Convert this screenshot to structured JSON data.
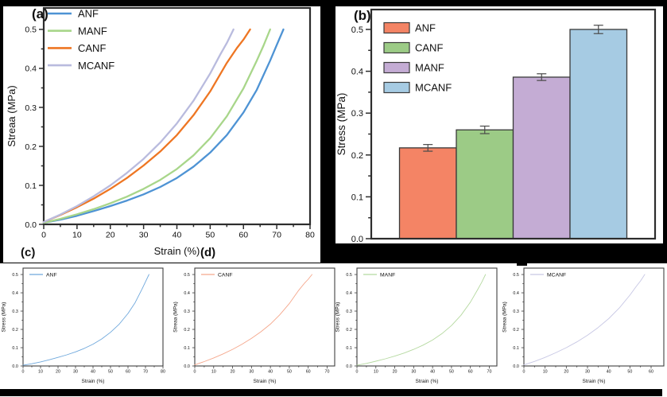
{
  "panels": {
    "a_label": "(a)",
    "b_label": "(b)",
    "c_label": "(c)",
    "d_label": "(d)"
  },
  "chart_data": [
    {
      "id": "panel-a",
      "type": "line",
      "title": "",
      "xlabel": "Strain (%)",
      "ylabel": "Streaa (MPa)",
      "xlim": [
        0,
        80
      ],
      "ylim": [
        0,
        0.5
      ],
      "xticks": [
        0,
        10,
        20,
        30,
        40,
        50,
        60,
        70,
        80
      ],
      "yticks": [
        0.0,
        0.1,
        0.2,
        0.3,
        0.4,
        0.5
      ],
      "grid": false,
      "legend_position": "top-left",
      "series": [
        {
          "name": "ANF",
          "color": "#4E93D4",
          "points": [
            [
              0,
              0.004
            ],
            [
              5,
              0.012
            ],
            [
              10,
              0.022
            ],
            [
              15,
              0.034
            ],
            [
              20,
              0.047
            ],
            [
              25,
              0.061
            ],
            [
              30,
              0.077
            ],
            [
              35,
              0.096
            ],
            [
              40,
              0.119
            ],
            [
              45,
              0.148
            ],
            [
              50,
              0.184
            ],
            [
              55,
              0.229
            ],
            [
              60,
              0.287
            ],
            [
              64,
              0.345
            ],
            [
              68,
              0.42
            ],
            [
              70,
              0.46
            ],
            [
              72,
              0.5
            ]
          ]
        },
        {
          "name": "MANF",
          "color": "#A8D68A",
          "points": [
            [
              0,
              0.004
            ],
            [
              5,
              0.014
            ],
            [
              10,
              0.026
            ],
            [
              15,
              0.039
            ],
            [
              20,
              0.054
            ],
            [
              25,
              0.071
            ],
            [
              30,
              0.091
            ],
            [
              35,
              0.114
            ],
            [
              40,
              0.142
            ],
            [
              45,
              0.177
            ],
            [
              50,
              0.221
            ],
            [
              55,
              0.277
            ],
            [
              60,
              0.349
            ],
            [
              64,
              0.42
            ],
            [
              66,
              0.458
            ],
            [
              68,
              0.5
            ]
          ]
        },
        {
          "name": "CANF",
          "color": "#EE7623",
          "points": [
            [
              0,
              0.006
            ],
            [
              5,
              0.024
            ],
            [
              10,
              0.044
            ],
            [
              15,
              0.066
            ],
            [
              20,
              0.091
            ],
            [
              25,
              0.119
            ],
            [
              30,
              0.151
            ],
            [
              35,
              0.187
            ],
            [
              40,
              0.229
            ],
            [
              45,
              0.28
            ],
            [
              50,
              0.341
            ],
            [
              55,
              0.414
            ],
            [
              58,
              0.452
            ],
            [
              60,
              0.474
            ],
            [
              62,
              0.5
            ]
          ]
        },
        {
          "name": "MCANF",
          "color": "#B9BBDE",
          "points": [
            [
              0,
              0.006
            ],
            [
              5,
              0.025
            ],
            [
              10,
              0.047
            ],
            [
              15,
              0.072
            ],
            [
              20,
              0.1
            ],
            [
              25,
              0.132
            ],
            [
              30,
              0.168
            ],
            [
              35,
              0.21
            ],
            [
              40,
              0.259
            ],
            [
              45,
              0.317
            ],
            [
              50,
              0.387
            ],
            [
              53,
              0.435
            ],
            [
              55,
              0.465
            ],
            [
              57,
              0.5
            ]
          ]
        }
      ]
    },
    {
      "id": "panel-b",
      "type": "bar",
      "title": "",
      "xlabel": "",
      "ylabel": "Stress (MPa)",
      "categories": [
        "ANF",
        "CANF",
        "MANF",
        "MCANF"
      ],
      "values": [
        0.217,
        0.26,
        0.386,
        0.5
      ],
      "errors": [
        0.008,
        0.009,
        0.008,
        0.01
      ],
      "colors": [
        "#F48465",
        "#9CCB86",
        "#C4ACD4",
        "#A6CBE3"
      ],
      "ylim": [
        0,
        0.5
      ],
      "yticks": [
        0.0,
        0.1,
        0.2,
        0.3,
        0.4,
        0.5
      ],
      "grid": false,
      "legend_position": "top-left"
    },
    {
      "id": "panel-c1",
      "type": "line",
      "xlabel": "Strain (%)",
      "ylabel": "Stress (MPa)",
      "xlim": [
        0,
        80
      ],
      "ylim": [
        0,
        0.5
      ],
      "xticks": [
        0,
        10,
        20,
        30,
        40,
        50,
        60,
        70,
        80
      ],
      "yticks": [
        0.0,
        0.1,
        0.2,
        0.3,
        0.4,
        0.5
      ],
      "legend_position": "top-left",
      "series": [
        {
          "name": "ANF",
          "color": "#6FA8DC",
          "points": [
            [
              0,
              0.004
            ],
            [
              5,
              0.012
            ],
            [
              10,
              0.022
            ],
            [
              15,
              0.034
            ],
            [
              20,
              0.047
            ],
            [
              25,
              0.061
            ],
            [
              30,
              0.077
            ],
            [
              35,
              0.096
            ],
            [
              40,
              0.119
            ],
            [
              45,
              0.148
            ],
            [
              50,
              0.184
            ],
            [
              55,
              0.229
            ],
            [
              60,
              0.287
            ],
            [
              64,
              0.345
            ],
            [
              68,
              0.42
            ],
            [
              70,
              0.46
            ],
            [
              72,
              0.5
            ]
          ]
        }
      ]
    },
    {
      "id": "panel-c2",
      "type": "line",
      "xlabel": "Strain (%)",
      "ylabel": "Streaa (MPa)",
      "xlim": [
        0,
        74
      ],
      "ylim": [
        0,
        0.5
      ],
      "xticks": [
        0,
        10,
        20,
        30,
        40,
        50,
        60,
        70
      ],
      "yticks": [
        0.0,
        0.1,
        0.2,
        0.3,
        0.4,
        0.5
      ],
      "legend_position": "top-left",
      "series": [
        {
          "name": "CANF",
          "color": "#F5A78C",
          "points": [
            [
              0,
              0.006
            ],
            [
              5,
              0.024
            ],
            [
              10,
              0.044
            ],
            [
              15,
              0.066
            ],
            [
              20,
              0.091
            ],
            [
              25,
              0.119
            ],
            [
              30,
              0.151
            ],
            [
              35,
              0.187
            ],
            [
              40,
              0.229
            ],
            [
              45,
              0.28
            ],
            [
              50,
              0.341
            ],
            [
              55,
              0.414
            ],
            [
              58,
              0.452
            ],
            [
              60,
              0.474
            ],
            [
              62,
              0.5
            ]
          ]
        }
      ]
    },
    {
      "id": "panel-c3",
      "type": "line",
      "xlabel": "Strain (%)",
      "ylabel": "Stress (MPa)",
      "xlim": [
        0,
        74
      ],
      "ylim": [
        0,
        0.5
      ],
      "xticks": [
        0,
        10,
        20,
        30,
        40,
        50,
        60,
        70
      ],
      "yticks": [
        0.0,
        0.1,
        0.2,
        0.3,
        0.4,
        0.5
      ],
      "legend_position": "top-left",
      "series": [
        {
          "name": "MANF",
          "color": "#B5D9A0",
          "points": [
            [
              0,
              0.004
            ],
            [
              5,
              0.014
            ],
            [
              10,
              0.026
            ],
            [
              15,
              0.039
            ],
            [
              20,
              0.054
            ],
            [
              25,
              0.071
            ],
            [
              30,
              0.091
            ],
            [
              35,
              0.114
            ],
            [
              40,
              0.142
            ],
            [
              45,
              0.177
            ],
            [
              50,
              0.221
            ],
            [
              55,
              0.277
            ],
            [
              60,
              0.349
            ],
            [
              64,
              0.42
            ],
            [
              66,
              0.458
            ],
            [
              68,
              0.5
            ]
          ]
        }
      ]
    },
    {
      "id": "panel-c4",
      "type": "line",
      "xlabel": "Strain (%)",
      "ylabel": "Streaa (MPa)",
      "xlim": [
        0,
        66
      ],
      "ylim": [
        0,
        0.5
      ],
      "xticks": [
        0,
        10,
        20,
        30,
        40,
        50,
        60
      ],
      "yticks": [
        0.0,
        0.1,
        0.2,
        0.3,
        0.4,
        0.5
      ],
      "legend_position": "top-left",
      "series": [
        {
          "name": "MCANF",
          "color": "#C7C7E4",
          "points": [
            [
              0,
              0.006
            ],
            [
              5,
              0.025
            ],
            [
              10,
              0.047
            ],
            [
              15,
              0.072
            ],
            [
              20,
              0.1
            ],
            [
              25,
              0.132
            ],
            [
              30,
              0.168
            ],
            [
              35,
              0.21
            ],
            [
              40,
              0.259
            ],
            [
              45,
              0.317
            ],
            [
              50,
              0.387
            ],
            [
              53,
              0.435
            ],
            [
              55,
              0.465
            ],
            [
              57,
              0.5
            ]
          ]
        }
      ]
    }
  ]
}
